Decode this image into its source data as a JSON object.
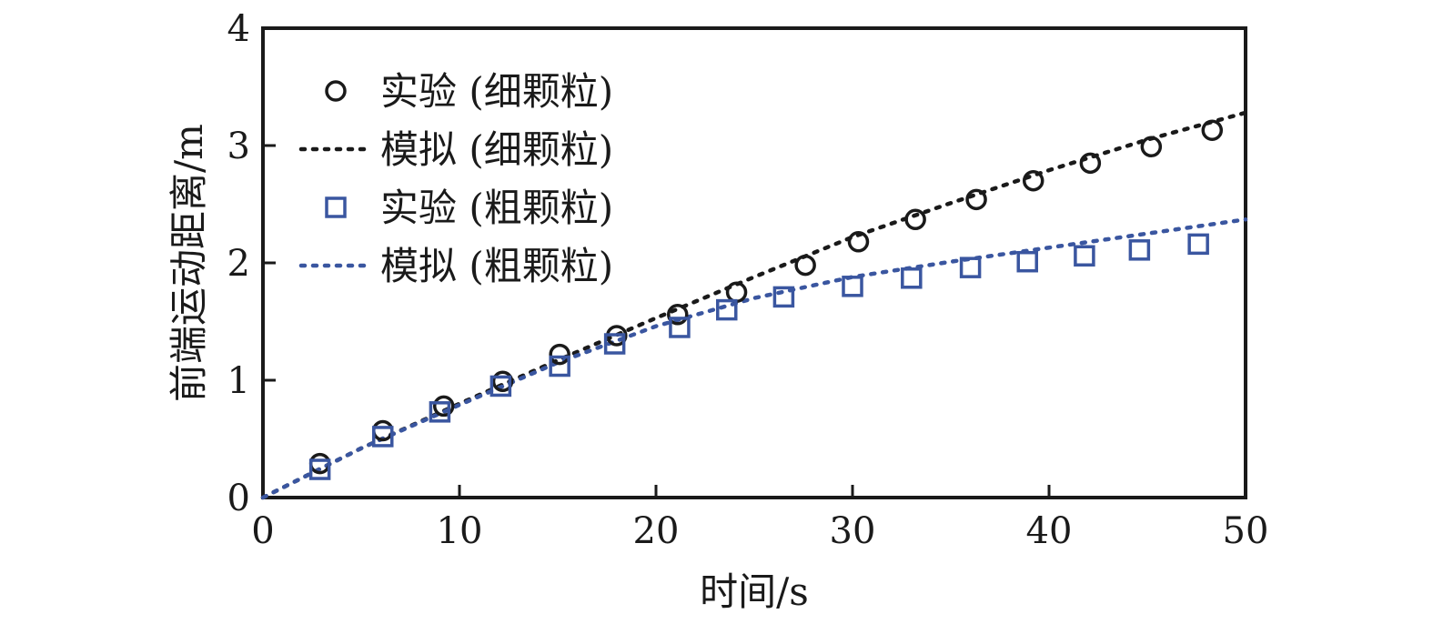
{
  "chart_data": {
    "type": "scatter",
    "xlabel": "时间/s",
    "ylabel": "前端运动距离/m",
    "xlim": [
      0,
      50
    ],
    "ylim": [
      0,
      4
    ],
    "xticks": [
      0,
      10,
      20,
      30,
      40,
      50
    ],
    "yticks": [
      0,
      1,
      2,
      3,
      4
    ],
    "grid": false,
    "legend_position": "top-left",
    "series": [
      {
        "name": "实验 (细颗粒)",
        "kind": "markers",
        "marker": "circle",
        "color": "#1a1a1a",
        "x": [
          2.9,
          6.1,
          9.2,
          12.2,
          15.1,
          18.0,
          21.1,
          24.1,
          27.6,
          30.3,
          33.2,
          36.3,
          39.2,
          42.1,
          45.2,
          48.3
        ],
        "y": [
          0.29,
          0.57,
          0.78,
          0.99,
          1.22,
          1.38,
          1.56,
          1.75,
          1.98,
          2.18,
          2.37,
          2.54,
          2.7,
          2.85,
          2.99,
          3.13
        ]
      },
      {
        "name": "模拟 (细颗粒)",
        "kind": "line",
        "dash": "dotted",
        "color": "#1a1a1a",
        "x": [
          0,
          5,
          10,
          15,
          20,
          25,
          30,
          35,
          40,
          45,
          50
        ],
        "y": [
          0,
          0.42,
          0.8,
          1.17,
          1.53,
          1.88,
          2.22,
          2.51,
          2.79,
          3.05,
          3.28
        ]
      },
      {
        "name": "实验 (粗颗粒)",
        "kind": "markers",
        "marker": "square",
        "color": "#3a56a0",
        "x": [
          2.9,
          6.1,
          9.0,
          12.1,
          15.1,
          17.9,
          21.2,
          23.6,
          26.5,
          30.0,
          33.0,
          36.0,
          38.9,
          41.8,
          44.6,
          47.6
        ],
        "y": [
          0.24,
          0.52,
          0.73,
          0.95,
          1.12,
          1.31,
          1.45,
          1.6,
          1.71,
          1.8,
          1.87,
          1.96,
          2.01,
          2.06,
          2.11,
          2.16
        ]
      },
      {
        "name": "模拟 (粗颗粒)",
        "kind": "line",
        "dash": "dotted",
        "color": "#3a56a0",
        "x": [
          0,
          5,
          10,
          15,
          20,
          25,
          30,
          35,
          40,
          45,
          50
        ],
        "y": [
          0,
          0.42,
          0.79,
          1.15,
          1.46,
          1.7,
          1.88,
          2.01,
          2.13,
          2.25,
          2.37
        ]
      }
    ]
  }
}
